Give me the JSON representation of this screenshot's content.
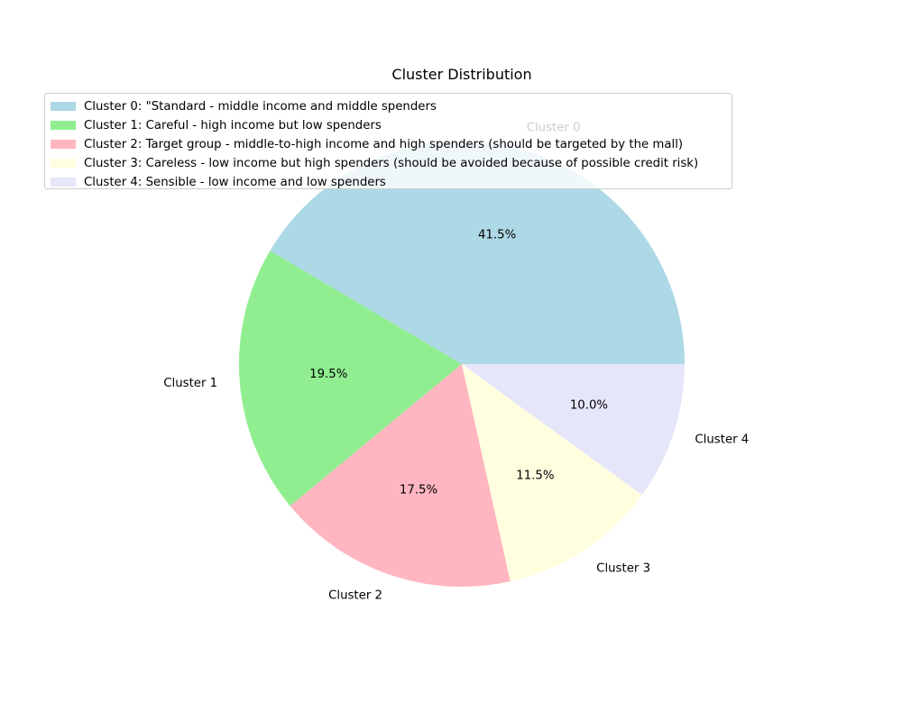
{
  "chart_data": {
    "type": "pie",
    "title": "Cluster Distribution",
    "categories": [
      "Cluster 0",
      "Cluster 1",
      "Cluster 2",
      "Cluster 3",
      "Cluster 4"
    ],
    "values": [
      41.5,
      19.5,
      17.5,
      11.5,
      10.0
    ],
    "percent_labels": [
      "41.5%",
      "19.5%",
      "17.5%",
      "11.5%",
      "10.0%"
    ],
    "colors": [
      "#add8e6",
      "#90ee90",
      "#ffb6c1",
      "#ffffe0",
      "#e6e6fa"
    ],
    "start_angle_deg": 0,
    "direction": "counterclockwise",
    "legend_placement": "upper-left",
    "legend": [
      "Cluster 0: \"Standard - middle income and middle spenders",
      "Cluster 1: Careful - high income but low spenders",
      "Cluster 2: Target group - middle-to-high income and high spenders (should be targeted by the mall)",
      "Cluster 3: Careless - low income but high spenders (should be avoided because of possible credit risk)",
      "Cluster 4: Sensible - low income and low spenders"
    ]
  }
}
